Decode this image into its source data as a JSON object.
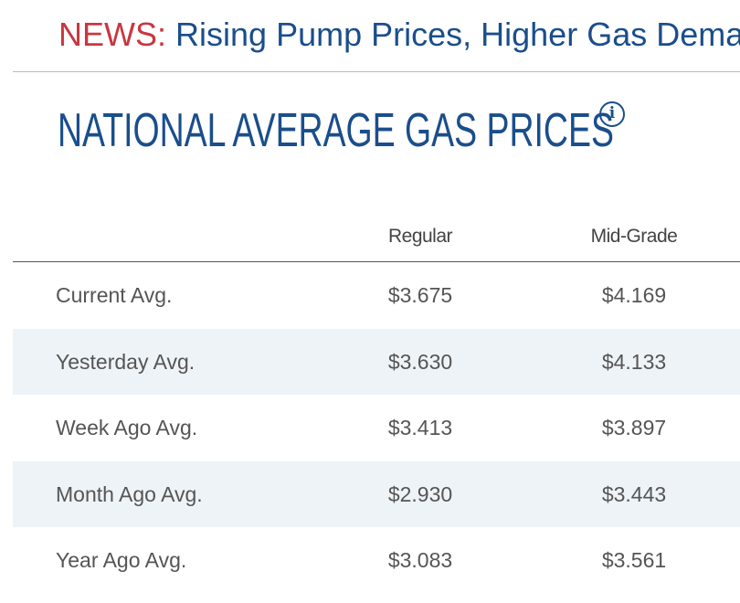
{
  "news": {
    "label": "NEWS:",
    "headline": "Rising Pump Prices, Higher Gas Demand"
  },
  "title": "NATIONAL AVERAGE GAS PRICES",
  "info_icon": "info-icon",
  "table": {
    "columns": [
      "Regular",
      "Mid-Grade"
    ],
    "rows": [
      {
        "label": "Current Avg.",
        "regular": "$3.675",
        "midgrade": "$4.169"
      },
      {
        "label": "Yesterday Avg.",
        "regular": "$3.630",
        "midgrade": "$4.133"
      },
      {
        "label": "Week Ago Avg.",
        "regular": "$3.413",
        "midgrade": "$3.897"
      },
      {
        "label": "Month Ago Avg.",
        "regular": "$2.930",
        "midgrade": "$3.443"
      },
      {
        "label": "Year Ago Avg.",
        "regular": "$3.083",
        "midgrade": "$3.561"
      }
    ]
  },
  "colors": {
    "news_label": "#c8373f",
    "brand_blue": "#1a4e8c",
    "row_shade": "#eef3f7",
    "text_gray": "#555555"
  }
}
